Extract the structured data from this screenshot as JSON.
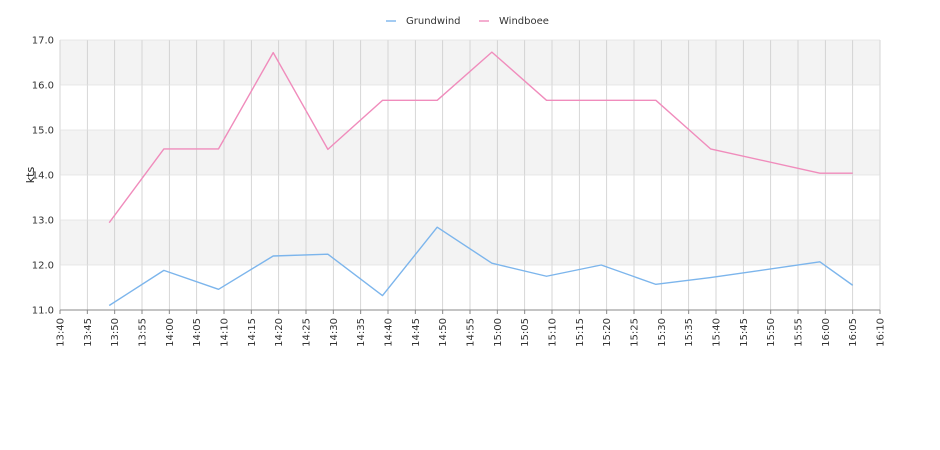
{
  "chart_data": {
    "type": "line",
    "title": "",
    "xlabel": "",
    "ylabel": "kts",
    "ylim": [
      11.0,
      17.0
    ],
    "y_ticks": [
      "11.0",
      "12.0",
      "13.0",
      "14.0",
      "15.0",
      "16.0",
      "17.0"
    ],
    "x_ticks": [
      "13:40",
      "13:45",
      "13:50",
      "13:55",
      "14:00",
      "14:05",
      "14:10",
      "14:15",
      "14:20",
      "14:25",
      "14:30",
      "14:35",
      "14:40",
      "14:45",
      "14:50",
      "14:55",
      "15:00",
      "15:05",
      "15:10",
      "15:15",
      "15:20",
      "15:25",
      "15:30",
      "15:35",
      "15:40",
      "15:45",
      "15:50",
      "15:55",
      "16:00",
      "16:05",
      "16:10"
    ],
    "xlim": [
      "13:40",
      "16:10"
    ],
    "grid": true,
    "legend_position": "top-center",
    "series": [
      {
        "name": "Grundwind",
        "color": "#7cb5ec",
        "points": [
          {
            "x": "13:49",
            "y": 11.1
          },
          {
            "x": "13:59",
            "y": 11.88
          },
          {
            "x": "14:09",
            "y": 11.46
          },
          {
            "x": "14:19",
            "y": 12.2
          },
          {
            "x": "14:29",
            "y": 12.24
          },
          {
            "x": "14:39",
            "y": 11.32
          },
          {
            "x": "14:49",
            "y": 12.84
          },
          {
            "x": "14:59",
            "y": 12.04
          },
          {
            "x": "15:09",
            "y": 11.75
          },
          {
            "x": "15:19",
            "y": 12.0
          },
          {
            "x": "15:29",
            "y": 11.57
          },
          {
            "x": "15:39",
            "y": 11.72
          },
          {
            "x": "15:59",
            "y": 12.07
          },
          {
            "x": "16:05",
            "y": 11.55
          }
        ]
      },
      {
        "name": "Windboee",
        "color": "#f08cbc",
        "points": [
          {
            "x": "13:49",
            "y": 12.94
          },
          {
            "x": "13:59",
            "y": 14.58
          },
          {
            "x": "14:09",
            "y": 14.58
          },
          {
            "x": "14:19",
            "y": 16.72
          },
          {
            "x": "14:29",
            "y": 14.57
          },
          {
            "x": "14:39",
            "y": 15.66
          },
          {
            "x": "14:49",
            "y": 15.66
          },
          {
            "x": "14:59",
            "y": 16.73
          },
          {
            "x": "15:09",
            "y": 15.66
          },
          {
            "x": "15:19",
            "y": 15.66
          },
          {
            "x": "15:29",
            "y": 15.66
          },
          {
            "x": "15:39",
            "y": 14.58
          },
          {
            "x": "15:59",
            "y": 14.04
          },
          {
            "x": "16:05",
            "y": 14.04
          }
        ]
      }
    ]
  }
}
